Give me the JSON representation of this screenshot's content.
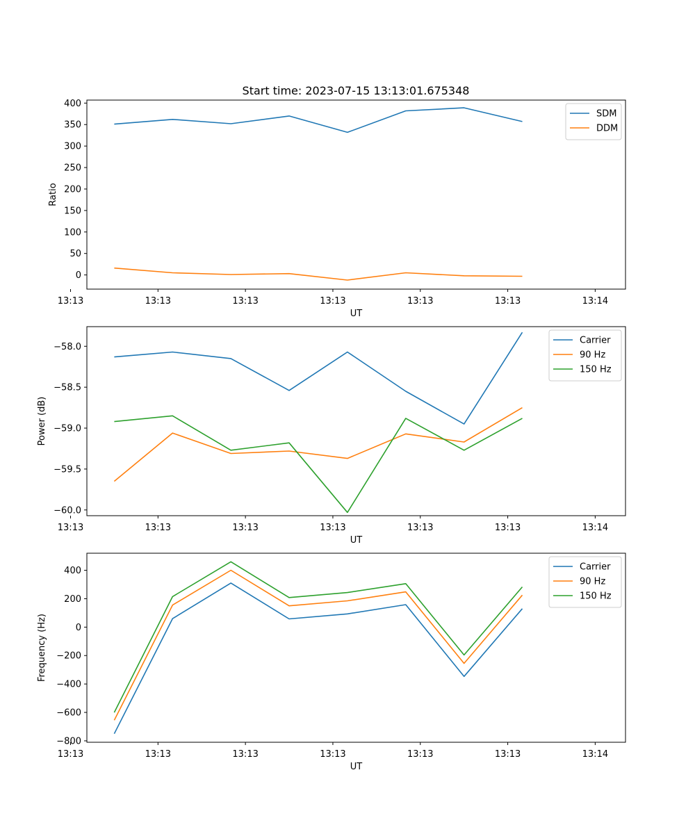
{
  "figure_title": "Start time: 2023-07-15 13:13:01.675348",
  "chart_data": [
    {
      "type": "line",
      "xlabel": "UT",
      "ylabel": "Ratio",
      "x_tick_labels": [
        "13:13",
        "13:13",
        "13:13",
        "13:13",
        "13:13",
        "13:13",
        "13:14"
      ],
      "y_ticks": [
        0,
        50,
        100,
        150,
        200,
        250,
        300,
        350,
        400
      ],
      "ylim": [
        -33,
        407
      ],
      "xlim": [
        -0.47,
        8.77
      ],
      "x": [
        0,
        1,
        2,
        3,
        4,
        5,
        6,
        7
      ],
      "legend_position": "top-right",
      "series": [
        {
          "name": "SDM",
          "color": "#1f77b4",
          "values": [
            351,
            362,
            352,
            370,
            332,
            382,
            389,
            357
          ]
        },
        {
          "name": "DDM",
          "color": "#ff7f0e",
          "values": [
            16,
            5,
            1,
            3,
            -12,
            5,
            -2,
            -3
          ]
        }
      ]
    },
    {
      "type": "line",
      "xlabel": "UT",
      "ylabel": "Power (dB)",
      "x_tick_labels": [
        "13:13",
        "13:13",
        "13:13",
        "13:13",
        "13:13",
        "13:13",
        "13:14"
      ],
      "y_ticks": [
        -60.0,
        -59.5,
        -59.0,
        -58.5,
        -58.0
      ],
      "y_tick_labels": [
        "−60.0",
        "−59.5",
        "−59.0",
        "−58.5",
        "−58.0"
      ],
      "ylim": [
        -60.07,
        -57.76
      ],
      "xlim": [
        -0.47,
        8.77
      ],
      "x": [
        0,
        1,
        2,
        3,
        4,
        5,
        6,
        7
      ],
      "legend_position": "top-right",
      "series": [
        {
          "name": "Carrier",
          "color": "#1f77b4",
          "values": [
            -58.13,
            -58.07,
            -58.15,
            -58.54,
            -58.07,
            -58.55,
            -58.95,
            -57.83
          ]
        },
        {
          "name": "90 Hz",
          "color": "#ff7f0e",
          "values": [
            -59.65,
            -59.06,
            -59.31,
            -59.28,
            -59.37,
            -59.07,
            -59.17,
            -58.75
          ]
        },
        {
          "name": "150 Hz",
          "color": "#2ca02c",
          "values": [
            -58.92,
            -58.85,
            -59.27,
            -59.18,
            -60.03,
            -58.88,
            -59.27,
            -58.88
          ]
        }
      ]
    },
    {
      "type": "line",
      "xlabel": "UT",
      "ylabel": "Frequency (Hz)",
      "x_tick_labels": [
        "13:13",
        "13:13",
        "13:13",
        "13:13",
        "13:13",
        "13:13",
        "13:14"
      ],
      "y_ticks": [
        -800,
        -600,
        -400,
        -200,
        0,
        200,
        400
      ],
      "y_tick_labels": [
        "−800",
        "−600",
        "−400",
        "−200",
        "0",
        "200",
        "400"
      ],
      "ylim": [
        -810,
        520
      ],
      "xlim": [
        -0.47,
        8.77
      ],
      "x": [
        0,
        1,
        2,
        3,
        4,
        5,
        6,
        7
      ],
      "legend_position": "top-right",
      "series": [
        {
          "name": "Carrier",
          "color": "#1f77b4",
          "values": [
            -750,
            60,
            310,
            58,
            93,
            158,
            -347,
            130
          ]
        },
        {
          "name": "90 Hz",
          "color": "#ff7f0e",
          "values": [
            -655,
            155,
            400,
            150,
            185,
            248,
            -255,
            225
          ]
        },
        {
          "name": "150 Hz",
          "color": "#2ca02c",
          "values": [
            -600,
            215,
            460,
            208,
            243,
            306,
            -196,
            283
          ]
        }
      ]
    }
  ]
}
